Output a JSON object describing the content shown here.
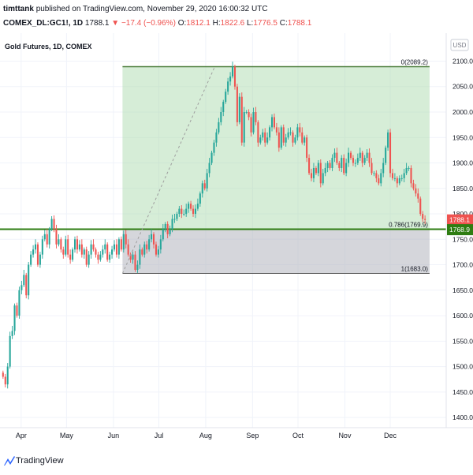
{
  "header": {
    "author": "timttank",
    "published_text": "published on TradingView.com, November 29, 2020 16:00:32 UTC",
    "symbol": "COMEX_DL:GC1!, 1D",
    "last": "1788.1",
    "change": "▼ −17.4 (−0.96%)",
    "o_label": "O:",
    "o_value": "1812.1",
    "h_label": "H:",
    "h_value": "1822.6",
    "l_label": "L:",
    "l_value": "1776.5",
    "c_label": "C:",
    "c_value": "1788.1"
  },
  "chart_data": {
    "type": "candlestick",
    "title": "Gold Futures, 1D, COMEX",
    "currency": "USD",
    "y_ticks": [
      1400,
      1450,
      1500,
      1550,
      1600,
      1650,
      1700,
      1750,
      1800,
      1850,
      1900,
      1950,
      2000,
      2050,
      2100
    ],
    "ylim": [
      1380,
      2155
    ],
    "x_tick_labels": [
      {
        "label": "Apr",
        "day": 14
      },
      {
        "label": "May",
        "day": 44
      },
      {
        "label": "Jun",
        "day": 75
      },
      {
        "label": "Jul",
        "day": 105
      },
      {
        "label": "Aug",
        "day": 136
      },
      {
        "label": "Sep",
        "day": 167
      },
      {
        "label": "Oct",
        "day": 197
      },
      {
        "label": "Nov",
        "day": 228
      },
      {
        "label": "Dec",
        "day": 258
      }
    ],
    "xlim": [
      0,
      295
    ],
    "candle_start_day": 2,
    "closes": [
      1480,
      1465,
      1500,
      1560,
      1570,
      1620,
      1600,
      1650,
      1660,
      1680,
      1640,
      1700,
      1720,
      1730,
      1740,
      1700,
      1720,
      1750,
      1760,
      1740,
      1770,
      1790,
      1770,
      1740,
      1750,
      1730,
      1720,
      1750,
      1720,
      1710,
      1730,
      1750,
      1730,
      1740,
      1720,
      1730,
      1700,
      1720,
      1740,
      1730,
      1720,
      1710,
      1720,
      1730,
      1740,
      1710,
      1720,
      1730,
      1740,
      1720,
      1750,
      1730,
      1760,
      1740,
      1720,
      1710,
      1720,
      1690,
      1700,
      1730,
      1720,
      1740,
      1730,
      1750,
      1760,
      1740,
      1720,
      1730,
      1750,
      1770,
      1780,
      1760,
      1770,
      1790,
      1790,
      1800,
      1810,
      1800,
      1800,
      1810,
      1820,
      1810,
      1800,
      1810,
      1820,
      1840,
      1860,
      1850,
      1880,
      1900,
      1920,
      1940,
      1960,
      1980,
      2000,
      2020,
      2040,
      2060,
      2070,
      2089,
      2050,
      1980,
      2030,
      1940,
      2000,
      2000,
      1990,
      1960,
      2000,
      1980,
      1940,
      1950,
      1960,
      1940,
      1950,
      1970,
      1990,
      1970,
      1960,
      1930,
      1970,
      1940,
      1950,
      1960,
      1960,
      1940,
      1950,
      1970,
      1960,
      1940,
      1950,
      1910,
      1880,
      1870,
      1890,
      1880,
      1900,
      1860,
      1880,
      1890,
      1900,
      1890,
      1910,
      1920,
      1900,
      1890,
      1910,
      1880,
      1900,
      1920,
      1910,
      1900,
      1900,
      1910,
      1920,
      1900,
      1910,
      1920,
      1900,
      1880,
      1880,
      1870,
      1860,
      1880,
      1900,
      1930,
      1960,
      1880,
      1870,
      1870,
      1860,
      1870,
      1870,
      1880,
      1890,
      1890,
      1860,
      1850,
      1840,
      1830,
      1800,
      1790,
      1788.1
    ],
    "fib_levels": [
      {
        "ratio": "0",
        "label": "0(2089.2)",
        "price": 2089.2,
        "color": "#4a7c3a"
      },
      {
        "ratio": "0.786",
        "label": "0.786(1769.9)",
        "price": 1769.9,
        "color": "#2e7d12"
      },
      {
        "ratio": "1",
        "label": "1(1683.0)",
        "price": 1683.0,
        "color": "#555555"
      }
    ],
    "fib_start_day": 81,
    "fib_end_day": 284,
    "trend_from": {
      "day": 81,
      "price": 1683.0
    },
    "trend_to": {
      "day": 142,
      "price": 2089.2
    },
    "last_price_label": "1788.1",
    "level_price_label": "1768.9",
    "up_color": "#26a69a",
    "down_color": "#ef5350"
  },
  "footer": {
    "brand": "TradingView"
  }
}
